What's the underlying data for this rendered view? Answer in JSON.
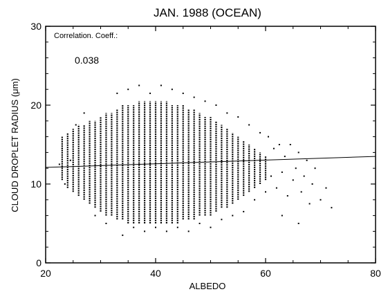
{
  "chart_data": {
    "type": "scatter",
    "title": "JAN. 1988 (OCEAN)",
    "xlabel": "ALBEDO",
    "ylabel": "CLOUD DROPLET RADIUS (μm)",
    "xlim": [
      20,
      80
    ],
    "ylim": [
      0,
      30
    ],
    "xticks": [
      20,
      40,
      60,
      80
    ],
    "yticks": [
      0,
      10,
      20,
      30
    ],
    "annotation_label": "Correlation. Coeff.:",
    "annotation_value": "0.038",
    "trend_line": {
      "x": [
        20,
        80
      ],
      "y": [
        12.1,
        13.5
      ]
    },
    "columns": [
      {
        "x": 23,
        "ymin": 10.5,
        "ymax": 16.0
      },
      {
        "x": 24,
        "ymin": 9.5,
        "ymax": 16.5
      },
      {
        "x": 25,
        "ymin": 9.0,
        "ymax": 17.0
      },
      {
        "x": 26,
        "ymin": 8.5,
        "ymax": 17.5
      },
      {
        "x": 27,
        "ymin": 8.0,
        "ymax": 17.5
      },
      {
        "x": 28,
        "ymin": 7.5,
        "ymax": 18.0
      },
      {
        "x": 29,
        "ymin": 7.0,
        "ymax": 18.0
      },
      {
        "x": 30,
        "ymin": 6.5,
        "ymax": 18.5
      },
      {
        "x": 31,
        "ymin": 6.0,
        "ymax": 19.0
      },
      {
        "x": 32,
        "ymin": 6.0,
        "ymax": 19.0
      },
      {
        "x": 33,
        "ymin": 5.5,
        "ymax": 19.5
      },
      {
        "x": 34,
        "ymin": 5.5,
        "ymax": 20.0
      },
      {
        "x": 35,
        "ymin": 5.0,
        "ymax": 20.0
      },
      {
        "x": 36,
        "ymin": 5.0,
        "ymax": 20.0
      },
      {
        "x": 37,
        "ymin": 5.0,
        "ymax": 20.5
      },
      {
        "x": 38,
        "ymin": 5.0,
        "ymax": 20.5
      },
      {
        "x": 39,
        "ymin": 5.0,
        "ymax": 20.5
      },
      {
        "x": 40,
        "ymin": 5.0,
        "ymax": 20.5
      },
      {
        "x": 41,
        "ymin": 5.0,
        "ymax": 20.5
      },
      {
        "x": 42,
        "ymin": 5.0,
        "ymax": 20.5
      },
      {
        "x": 43,
        "ymin": 5.0,
        "ymax": 20.0
      },
      {
        "x": 44,
        "ymin": 5.0,
        "ymax": 20.0
      },
      {
        "x": 45,
        "ymin": 5.5,
        "ymax": 20.0
      },
      {
        "x": 46,
        "ymin": 5.5,
        "ymax": 19.5
      },
      {
        "x": 47,
        "ymin": 5.5,
        "ymax": 19.5
      },
      {
        "x": 48,
        "ymin": 6.0,
        "ymax": 19.0
      },
      {
        "x": 49,
        "ymin": 6.0,
        "ymax": 18.5
      },
      {
        "x": 50,
        "ymin": 6.0,
        "ymax": 18.5
      },
      {
        "x": 51,
        "ymin": 6.5,
        "ymax": 18.0
      },
      {
        "x": 52,
        "ymin": 7.0,
        "ymax": 17.5
      },
      {
        "x": 53,
        "ymin": 7.0,
        "ymax": 17.0
      },
      {
        "x": 54,
        "ymin": 7.5,
        "ymax": 16.5
      },
      {
        "x": 55,
        "ymin": 8.0,
        "ymax": 16.0
      },
      {
        "x": 56,
        "ymin": 8.5,
        "ymax": 15.5
      },
      {
        "x": 57,
        "ymin": 9.0,
        "ymax": 15.0
      },
      {
        "x": 58,
        "ymin": 9.5,
        "ymax": 14.5
      },
      {
        "x": 59,
        "ymin": 10.0,
        "ymax": 14.0
      },
      {
        "x": 60,
        "ymin": 10.5,
        "ymax": 13.5
      }
    ],
    "points": [
      {
        "x": 22.5,
        "y": 12.5
      },
      {
        "x": 23,
        "y": 14.5
      },
      {
        "x": 23.5,
        "y": 10.0
      },
      {
        "x": 24.5,
        "y": 13.0
      },
      {
        "x": 25.5,
        "y": 17.5
      },
      {
        "x": 27,
        "y": 19.0
      },
      {
        "x": 29,
        "y": 6.0
      },
      {
        "x": 31,
        "y": 5.0
      },
      {
        "x": 33,
        "y": 21.5
      },
      {
        "x": 34,
        "y": 3.5
      },
      {
        "x": 35,
        "y": 22.0
      },
      {
        "x": 36,
        "y": 4.5
      },
      {
        "x": 37,
        "y": 22.5
      },
      {
        "x": 38,
        "y": 4.0
      },
      {
        "x": 39,
        "y": 21.5
      },
      {
        "x": 40,
        "y": 4.5
      },
      {
        "x": 41,
        "y": 22.5
      },
      {
        "x": 42,
        "y": 4.0
      },
      {
        "x": 43,
        "y": 22.0
      },
      {
        "x": 44,
        "y": 4.5
      },
      {
        "x": 45,
        "y": 21.5
      },
      {
        "x": 46,
        "y": 4.0
      },
      {
        "x": 47,
        "y": 21.0
      },
      {
        "x": 48,
        "y": 5.0
      },
      {
        "x": 49,
        "y": 20.5
      },
      {
        "x": 50,
        "y": 4.5
      },
      {
        "x": 51,
        "y": 20.0
      },
      {
        "x": 52,
        "y": 5.5
      },
      {
        "x": 53,
        "y": 19.0
      },
      {
        "x": 54,
        "y": 6.0
      },
      {
        "x": 55,
        "y": 18.5
      },
      {
        "x": 56,
        "y": 6.5
      },
      {
        "x": 57,
        "y": 17.5
      },
      {
        "x": 58,
        "y": 8.0
      },
      {
        "x": 59,
        "y": 16.5
      },
      {
        "x": 60,
        "y": 9.0
      },
      {
        "x": 60.5,
        "y": 16.0
      },
      {
        "x": 61,
        "y": 11.0
      },
      {
        "x": 61.5,
        "y": 14.5
      },
      {
        "x": 62,
        "y": 9.5
      },
      {
        "x": 62.5,
        "y": 15.0
      },
      {
        "x": 63,
        "y": 11.5
      },
      {
        "x": 63.5,
        "y": 13.5
      },
      {
        "x": 64,
        "y": 8.5
      },
      {
        "x": 64.5,
        "y": 15.0
      },
      {
        "x": 65,
        "y": 10.5
      },
      {
        "x": 65.5,
        "y": 12.0
      },
      {
        "x": 66,
        "y": 14.0
      },
      {
        "x": 66.5,
        "y": 9.0
      },
      {
        "x": 67,
        "y": 11.0
      },
      {
        "x": 67.5,
        "y": 13.0
      },
      {
        "x": 68,
        "y": 7.5
      },
      {
        "x": 68.5,
        "y": 10.0
      },
      {
        "x": 69,
        "y": 12.0
      },
      {
        "x": 70,
        "y": 8.0
      },
      {
        "x": 71,
        "y": 9.5
      },
      {
        "x": 72,
        "y": 7.0
      },
      {
        "x": 66,
        "y": 5.0
      },
      {
        "x": 63,
        "y": 6.0
      }
    ],
    "grid": false
  }
}
